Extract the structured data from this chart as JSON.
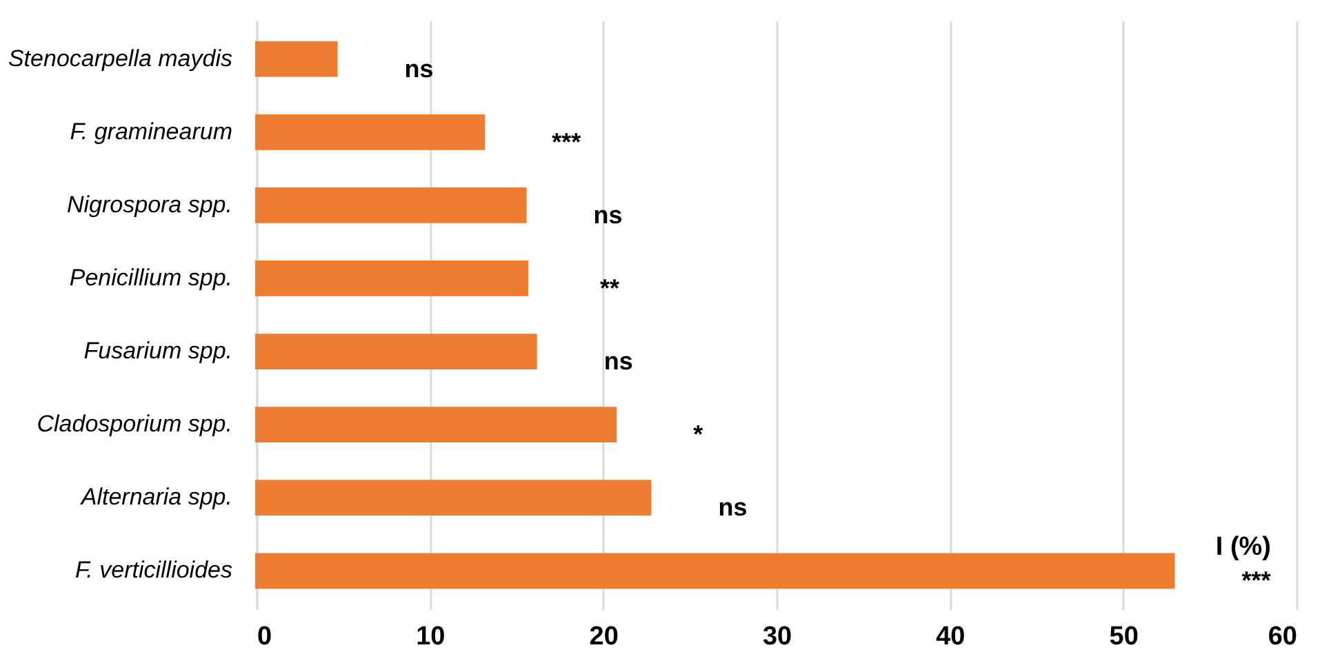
{
  "chart_data": {
    "type": "bar",
    "orientation": "horizontal",
    "xlabel": "I (%)",
    "categories": [
      "Stenocarpella maydis",
      "F. graminearum",
      "Nigrospora spp.",
      "Penicillium spp.",
      "Fusarium spp.",
      "Cladosporium spp.",
      "Alternaria spp.",
      "F. verticillioides"
    ],
    "values": [
      4.6,
      13.1,
      15.5,
      15.6,
      16.1,
      20.7,
      22.7,
      52.9
    ],
    "color": "#ed7d31",
    "xlim": [
      0,
      60
    ],
    "xticks": [
      0,
      10,
      20,
      30,
      40,
      50,
      60
    ],
    "grid": "x",
    "annotations": [
      "ns",
      "***",
      "ns",
      "**",
      "ns",
      "*",
      "ns",
      "***"
    ]
  }
}
